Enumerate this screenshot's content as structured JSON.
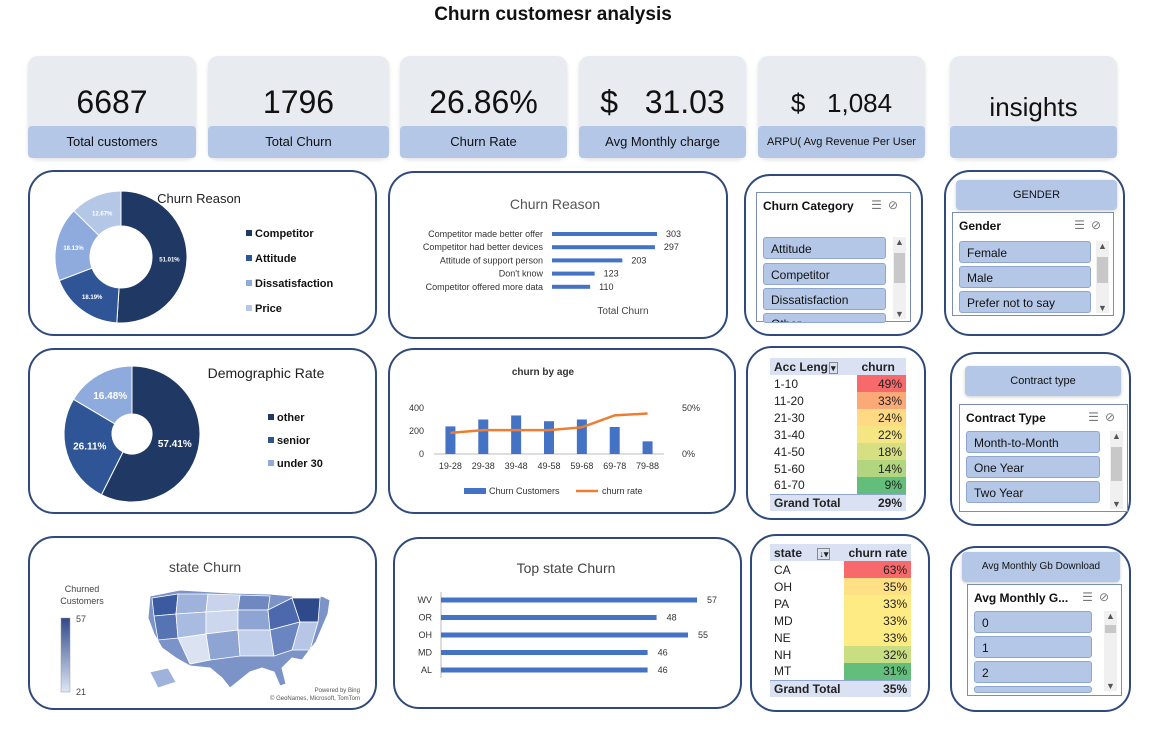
{
  "title": "Churn customesr analysis",
  "kpis": [
    {
      "value": "6687",
      "label": "Total customers"
    },
    {
      "value": "1796",
      "label": "Total Churn"
    },
    {
      "value": "26.86%",
      "label": "Churn Rate"
    },
    {
      "value": "$   31.03",
      "label": "Avg Monthly charge"
    },
    {
      "value": "$   1,084",
      "label": "ARPU( Avg Revenue  Per User"
    },
    {
      "value": "insights",
      "label": ""
    }
  ],
  "colors": {
    "dark": "#203864",
    "mid": "#2f5597",
    "light": "#8faadc",
    "pale": "#b4c7e7",
    "bar": "#4472c4",
    "line": "#ed7d31"
  },
  "chart_data": [
    {
      "type": "pie",
      "title": "Churn Reason",
      "categories": [
        "Competitor",
        "Attitude",
        "Dissatisfaction",
        "Price"
      ],
      "values": [
        51.01,
        18.19,
        18.13,
        12.67
      ],
      "labels": [
        "51.01%",
        "18.19%",
        "18.13%",
        "12.67%"
      ],
      "legend": "right"
    },
    {
      "type": "bar",
      "title": "Churn Reason",
      "categories": [
        "Competitor made better offer",
        "Competitor had better devices",
        "Attitude of support person",
        "Don't know",
        "Competitor offered more data"
      ],
      "values": [
        303,
        297,
        203,
        123,
        110
      ],
      "xlabel": "Total Churn"
    },
    {
      "type": "pie",
      "title": "Demographic Rate",
      "categories": [
        "other",
        "senior",
        "under 30"
      ],
      "values": [
        57.41,
        26.11,
        16.48
      ],
      "labels": [
        "57.41%",
        "26.11%",
        "16.48%"
      ],
      "legend": "right"
    },
    {
      "type": "bar",
      "title": "churn by age",
      "categories": [
        "19-28",
        "29-38",
        "39-48",
        "49-58",
        "59-68",
        "69-78",
        "79-88"
      ],
      "series": [
        {
          "name": "Churn Customers",
          "type": "bar",
          "values": [
            240,
            300,
            335,
            285,
            300,
            235,
            110
          ]
        },
        {
          "name": "churn rate",
          "type": "line",
          "values": [
            0.23,
            0.26,
            0.26,
            0.26,
            0.29,
            0.42,
            0.44
          ]
        }
      ],
      "yticks": [
        "0",
        "200",
        "400"
      ],
      "y2ticks": [
        "0%",
        "50%"
      ],
      "ylim": [
        0,
        500
      ],
      "y2lim": [
        0,
        0.5
      ]
    },
    {
      "type": "heatmap",
      "title": "state Churn",
      "legend_title": "Churned\nCustomers",
      "scale_max": "57",
      "scale_min": "21",
      "credits": [
        "Powered by Bing",
        "© GeoNames, Microsoft, TomTom"
      ]
    },
    {
      "type": "bar",
      "title": "Top state Churn",
      "categories": [
        "WV",
        "OR",
        "OH",
        "MD",
        "AL"
      ],
      "values": [
        57,
        48,
        55,
        46,
        46
      ]
    }
  ],
  "slicers": {
    "churn_category": {
      "header": "Churn Category",
      "items": [
        "Attitude",
        "Competitor",
        "Dissatisfaction",
        "Other"
      ]
    },
    "gender": {
      "title": "GENDER",
      "header": "Gender",
      "items": [
        "Female",
        "Male",
        "Prefer not to say"
      ]
    },
    "contract": {
      "title": "Contract type",
      "header": "Contract Type",
      "items": [
        "Month-to-Month",
        "One Year",
        "Two Year"
      ]
    },
    "gb": {
      "title": "Avg Monthly Gb Download",
      "header": "Avg Monthly G...",
      "items": [
        "0",
        "1",
        "2"
      ]
    }
  },
  "pivot_age": {
    "headers": [
      "Acc Leng",
      "churn"
    ],
    "rows": [
      {
        "k": "1-10",
        "v": "49%",
        "c": "#f8696b"
      },
      {
        "k": "11-20",
        "v": "33%",
        "c": "#fbaa77"
      },
      {
        "k": "21-30",
        "v": "24%",
        "c": "#ffd984"
      },
      {
        "k": "31-40",
        "v": "22%",
        "c": "#f5e683"
      },
      {
        "k": "41-50",
        "v": "18%",
        "c": "#d6df81"
      },
      {
        "k": "51-60",
        "v": "14%",
        "c": "#b2d57f"
      },
      {
        "k": "61-70",
        "v": "9%",
        "c": "#63be7b"
      }
    ],
    "total_label": "Grand Total",
    "total": "29%"
  },
  "pivot_state": {
    "headers": [
      "state",
      "churn rate"
    ],
    "rows": [
      {
        "k": "CA",
        "v": "63%",
        "c": "#f8696b"
      },
      {
        "k": "OH",
        "v": "35%",
        "c": "#ffe084"
      },
      {
        "k": "PA",
        "v": "33%",
        "c": "#ffeb84"
      },
      {
        "k": "MD",
        "v": "33%",
        "c": "#ffeb84"
      },
      {
        "k": "NE",
        "v": "33%",
        "c": "#ffeb84"
      },
      {
        "k": "NH",
        "v": "32%",
        "c": "#c9dd82"
      },
      {
        "k": "MT",
        "v": "31%",
        "c": "#63be7b"
      }
    ],
    "total_label": "Grand Total",
    "total": "35%"
  }
}
